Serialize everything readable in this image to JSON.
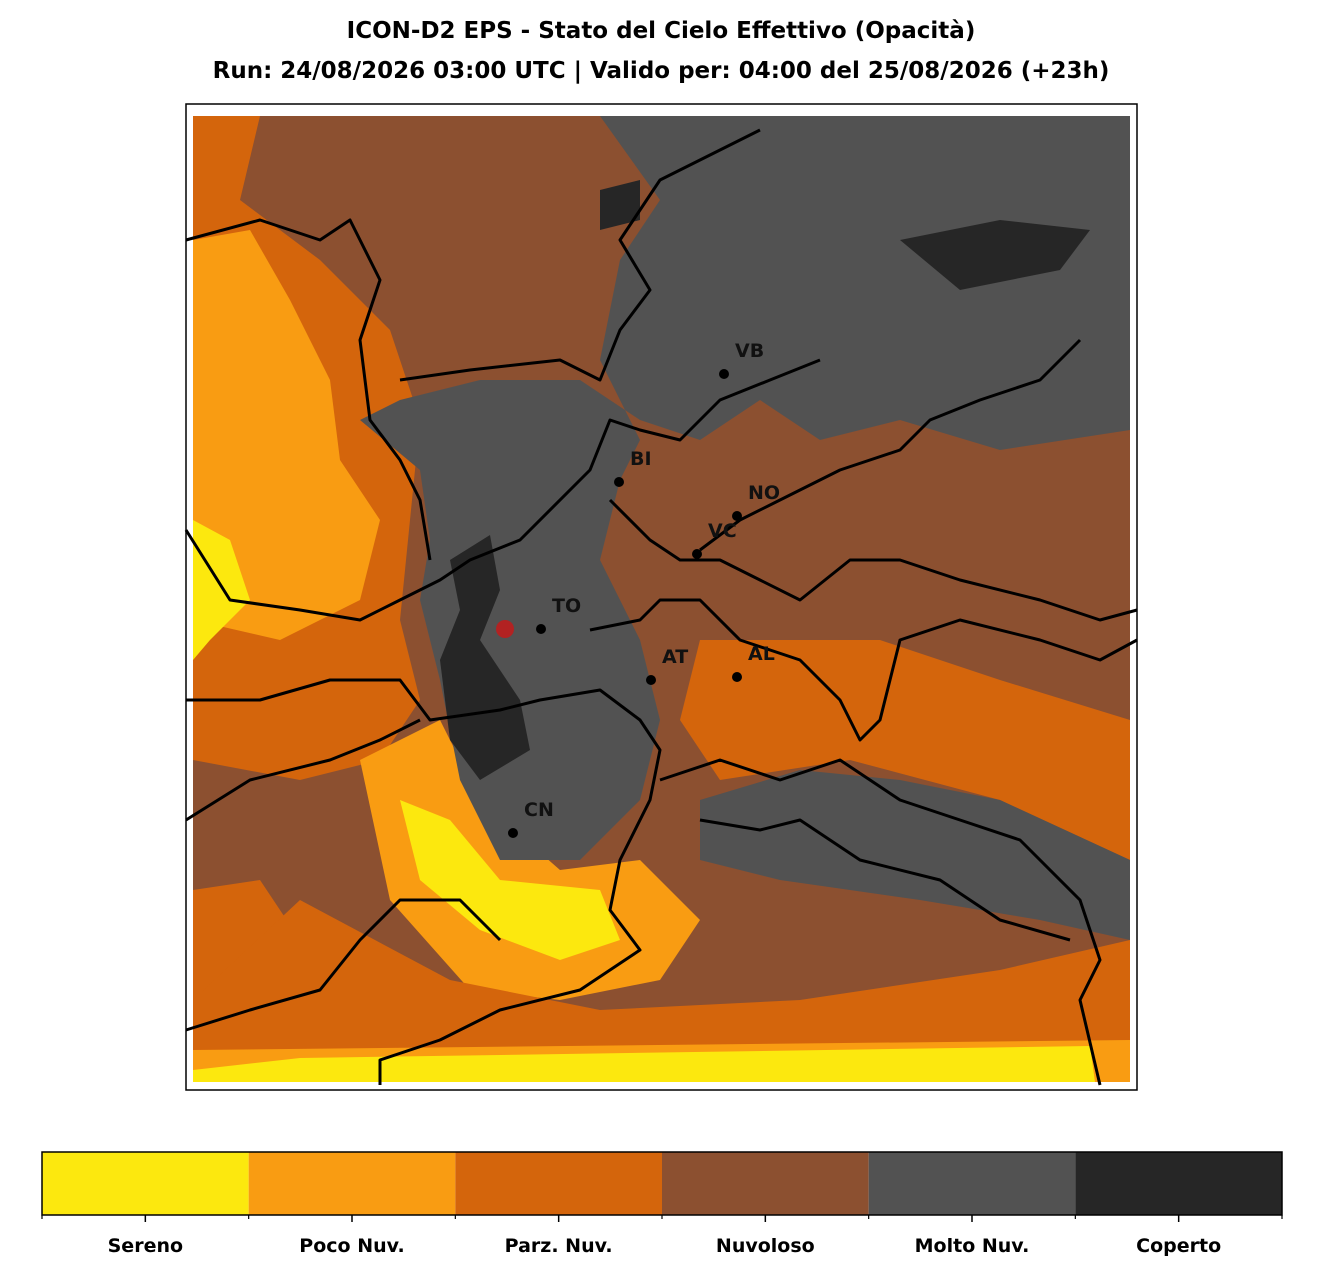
{
  "header": {
    "title": "ICON-D2 EPS - Stato del Cielo Effettivo (Opacità)",
    "subtitle": "Run: 24/08/2026 03:00 UTC | Valido per: 04:00 del 25/08/2026 (+23h)"
  },
  "map": {
    "cities": [
      "VB",
      "BI",
      "NO",
      "VC",
      "TO",
      "AT",
      "AL",
      "CN"
    ]
  },
  "legend": {
    "classes": [
      {
        "label": "Sereno",
        "color": "#fce80e"
      },
      {
        "label": "Poco Nuv.",
        "color": "#f99c12"
      },
      {
        "label": "Parz. Nuv.",
        "color": "#d4650c"
      },
      {
        "label": "Nuvoloso",
        "color": "#8c5030"
      },
      {
        "label": "Molto Nuv.",
        "color": "#525252"
      },
      {
        "label": "Coperto",
        "color": "#262626"
      }
    ]
  }
}
